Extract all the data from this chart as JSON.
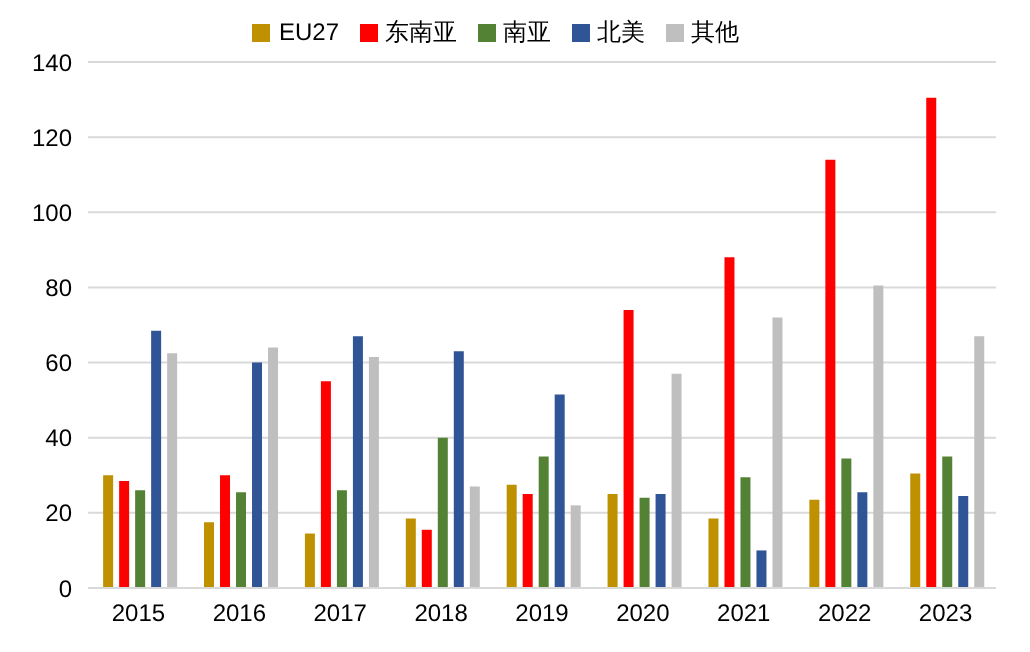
{
  "chart_data": {
    "type": "bar",
    "categories": [
      "2015",
      "2016",
      "2017",
      "2018",
      "2019",
      "2020",
      "2021",
      "2022",
      "2023"
    ],
    "series": [
      {
        "name": "EU27",
        "color": "#bf9000",
        "values": [
          30,
          17.5,
          14.5,
          18.5,
          27.5,
          25,
          18.5,
          23.5,
          30.5
        ]
      },
      {
        "name": "东南亚",
        "color": "#ff0000",
        "values": [
          28.5,
          30,
          55,
          15.5,
          25,
          74,
          88,
          114,
          130.5
        ]
      },
      {
        "name": "南亚",
        "color": "#548235",
        "values": [
          26,
          25.5,
          26,
          40,
          35,
          24,
          29.5,
          34.5,
          35
        ]
      },
      {
        "name": "北美",
        "color": "#2f5597",
        "values": [
          68.5,
          60,
          67,
          63,
          51.5,
          25,
          10,
          25.5,
          24.5
        ]
      },
      {
        "name": "其他",
        "color": "#bfbfbf",
        "values": [
          62.5,
          64,
          61.5,
          27,
          22,
          57,
          72,
          80.5,
          67
        ]
      }
    ],
    "ylim": [
      0,
      140
    ],
    "yticks": [
      0,
      20,
      40,
      60,
      80,
      100,
      120,
      140
    ],
    "grid": "y",
    "legend": "top"
  }
}
